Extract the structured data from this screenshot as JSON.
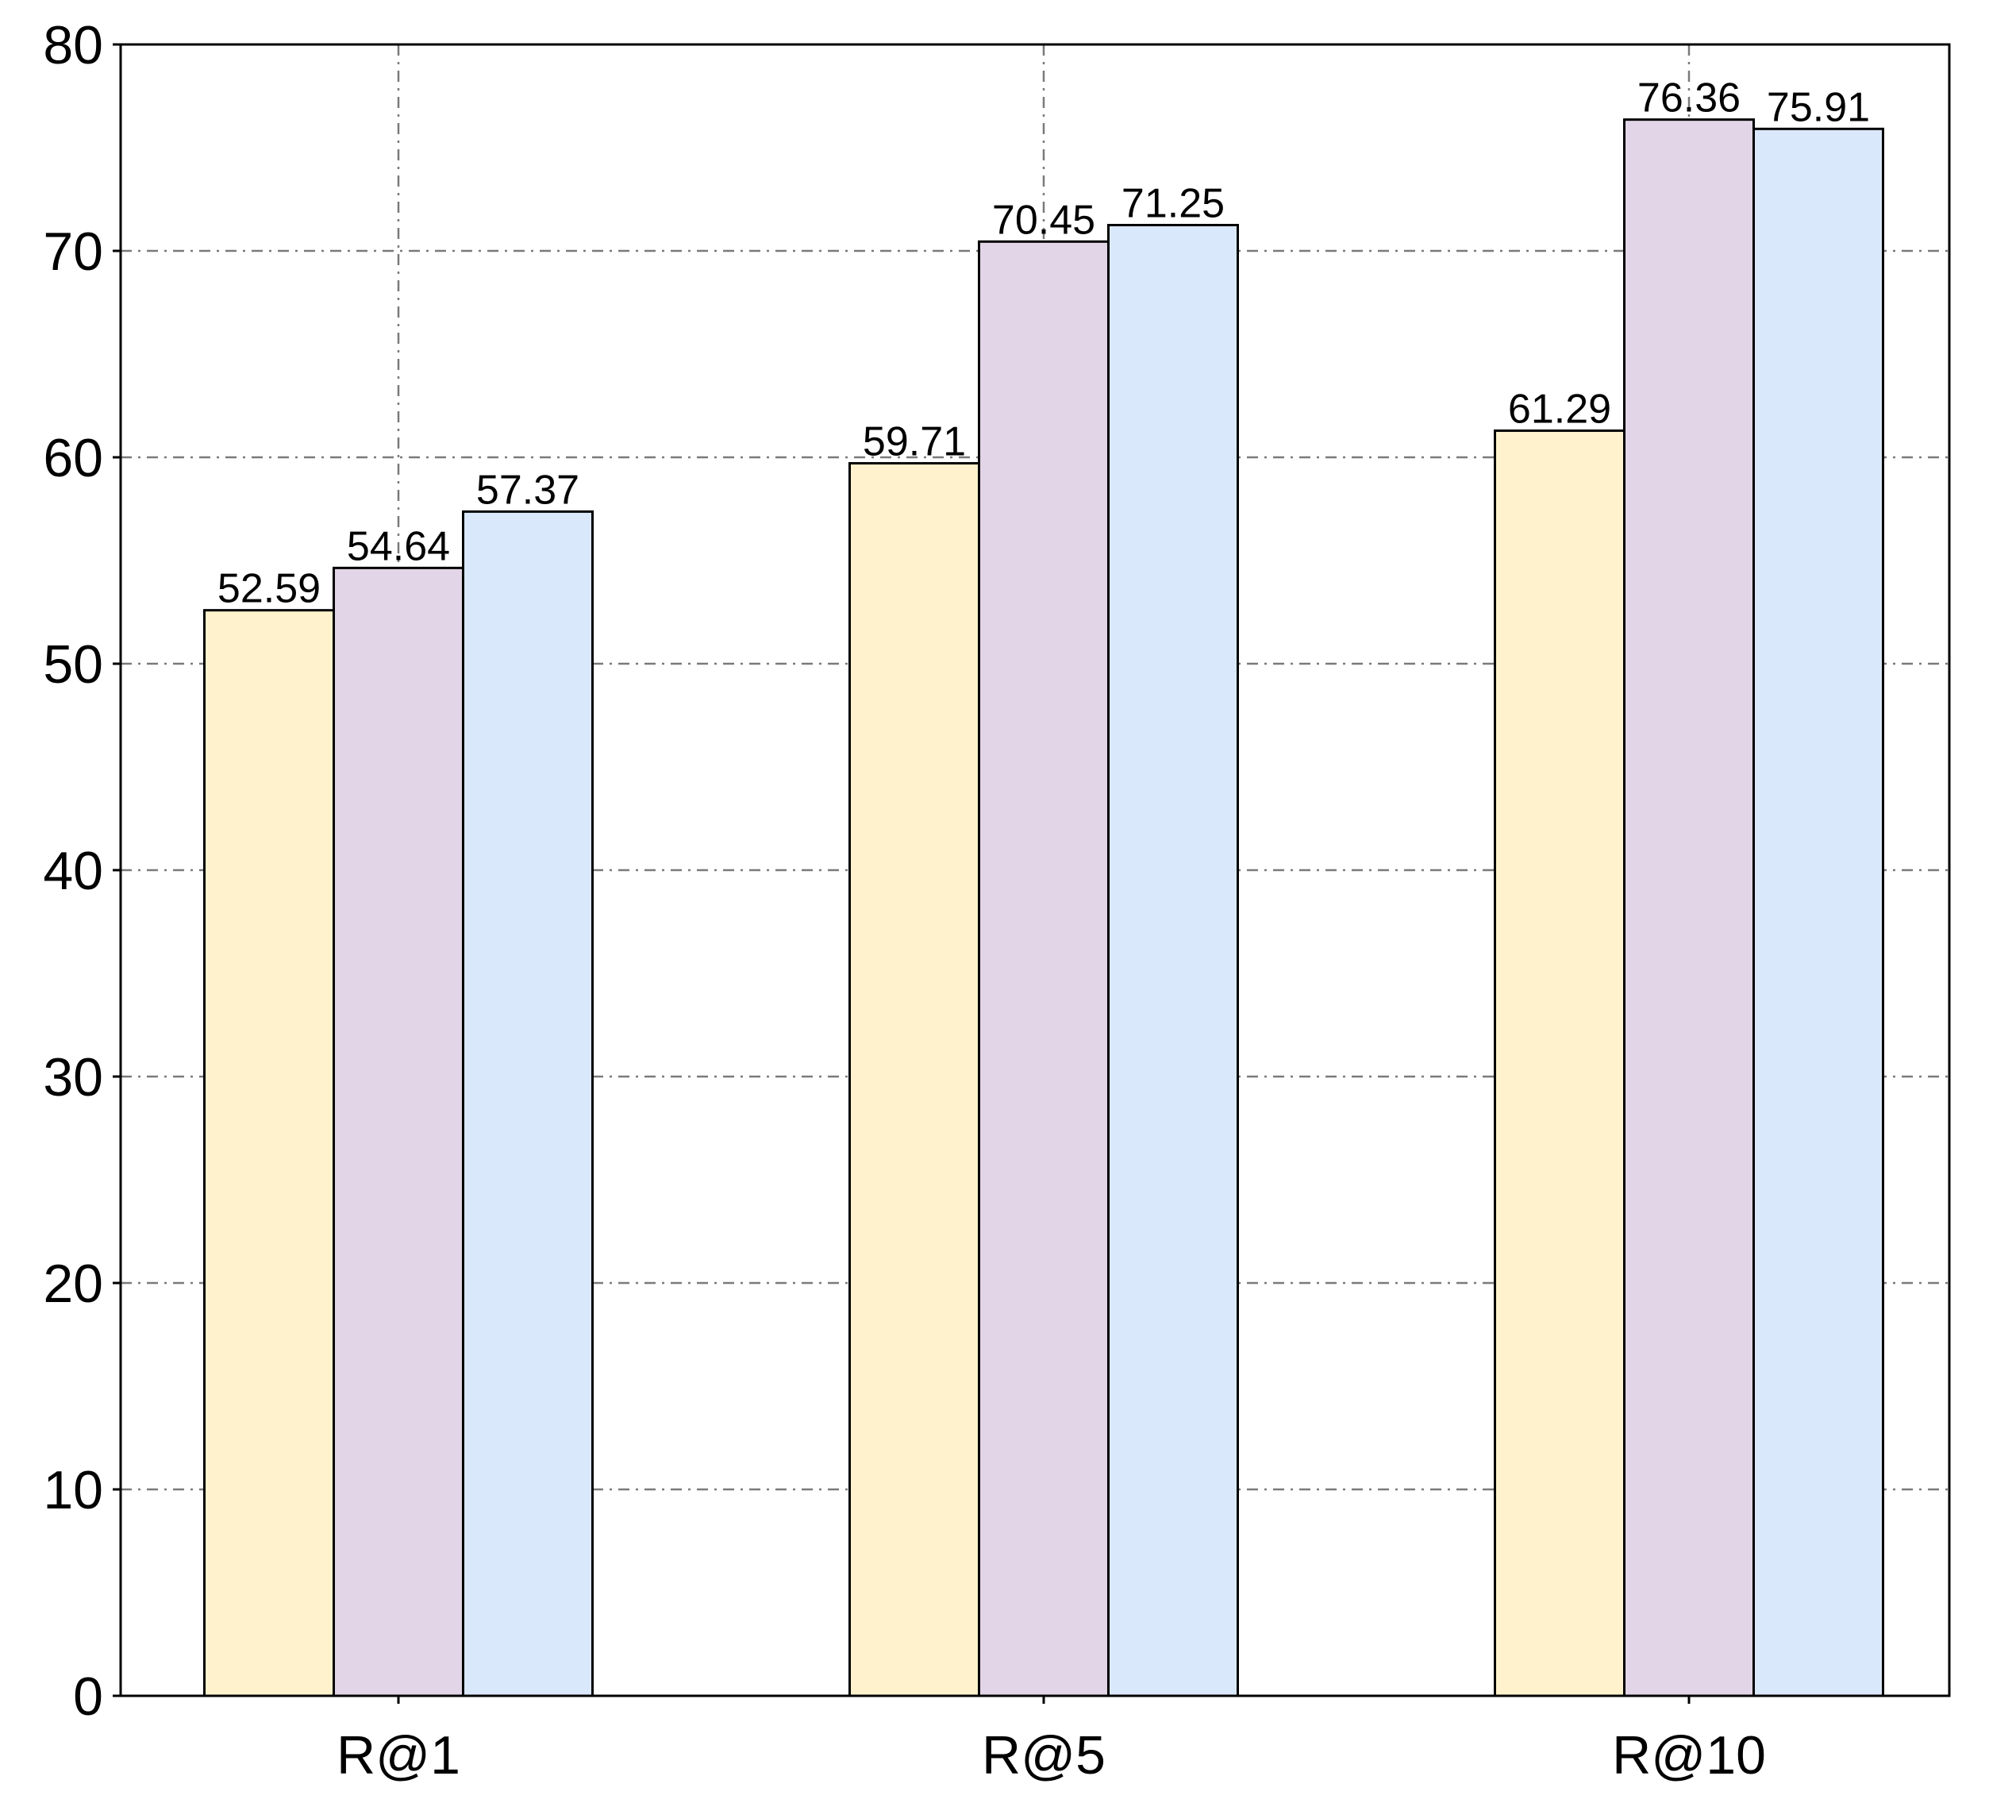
{
  "chart_data": {
    "type": "bar",
    "categories": [
      "R@1",
      "R@5",
      "R@10"
    ],
    "series": [
      {
        "values": [
          52.59,
          59.71,
          61.29
        ],
        "color": "#fff2cc"
      },
      {
        "values": [
          54.64,
          70.45,
          76.36
        ],
        "color": "#e1d5e7"
      },
      {
        "values": [
          57.37,
          71.25,
          75.91
        ],
        "color": "#dae8fc"
      }
    ],
    "ylim": [
      0,
      80
    ],
    "yticks": [
      0,
      10,
      20,
      30,
      40,
      50,
      60,
      70,
      80
    ],
    "grid": true,
    "legend": "none",
    "title": "",
    "xlabel": "",
    "ylabel": ""
  }
}
